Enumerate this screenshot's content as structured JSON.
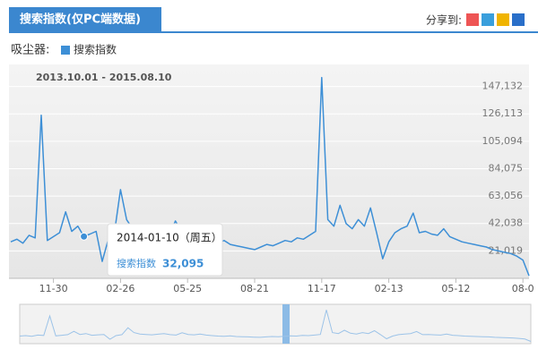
{
  "chart_data": {
    "type": "line",
    "title": "搜索指数(仅PC端数据)",
    "share_label": "分享到:",
    "keyword": "吸尘器:",
    "date_range": "2013.10.01 - 2015.08.10",
    "categories": [
      null,
      null,
      null,
      null,
      null,
      null,
      null,
      "11-30",
      null,
      null,
      null,
      null,
      null,
      null,
      null,
      null,
      null,
      null,
      "02-26",
      null,
      null,
      null,
      null,
      null,
      null,
      null,
      null,
      null,
      null,
      "05-25",
      null,
      null,
      null,
      null,
      null,
      null,
      null,
      null,
      null,
      null,
      "08-21",
      null,
      null,
      null,
      null,
      null,
      null,
      null,
      null,
      null,
      null,
      "11-17",
      null,
      null,
      null,
      null,
      null,
      null,
      null,
      null,
      null,
      null,
      "02-13",
      null,
      null,
      null,
      null,
      null,
      null,
      null,
      null,
      null,
      null,
      "05-12",
      null,
      null,
      null,
      null,
      null,
      null,
      null,
      null,
      null,
      null,
      "08-0",
      null
    ],
    "series": [
      {
        "name": "搜索指数",
        "color": "#3d8fd6",
        "values": [
          28000,
          30000,
          27000,
          33000,
          31000,
          125000,
          29000,
          32000,
          35000,
          51000,
          36000,
          40000,
          32095,
          34000,
          36000,
          13000,
          30000,
          35000,
          68000,
          45000,
          38000,
          36000,
          34000,
          37000,
          40000,
          35000,
          33000,
          44000,
          36000,
          34000,
          38000,
          33000,
          30000,
          28000,
          27000,
          29000,
          26000,
          25000,
          24000,
          23000,
          22000,
          24000,
          26000,
          25000,
          27000,
          29000,
          28000,
          31000,
          30000,
          33000,
          36000,
          154000,
          45000,
          40000,
          56000,
          42000,
          38000,
          45000,
          40000,
          54000,
          35000,
          15000,
          28000,
          35000,
          38000,
          40000,
          50000,
          35000,
          36000,
          34000,
          33000,
          38000,
          32000,
          30000,
          28000,
          27000,
          26000,
          25000,
          24000,
          22000,
          21000,
          20000,
          19000,
          17000,
          14000,
          2000
        ]
      }
    ],
    "ylim": [
      0,
      164000
    ],
    "yticks": [
      {
        "value": 21019,
        "label": "21,019"
      },
      {
        "value": 42038,
        "label": "42,038"
      },
      {
        "value": 63056,
        "label": "63,056"
      },
      {
        "value": 84075,
        "label": "84,075"
      },
      {
        "value": 105094,
        "label": "105,094"
      },
      {
        "value": 126113,
        "label": "126,113"
      },
      {
        "value": 147132,
        "label": "147,132"
      }
    ],
    "grid": true,
    "tooltip": {
      "date": "2014-01-10（周五）",
      "name": "搜索指数",
      "value": 32095,
      "value_label": "32,095",
      "index": 12
    }
  }
}
